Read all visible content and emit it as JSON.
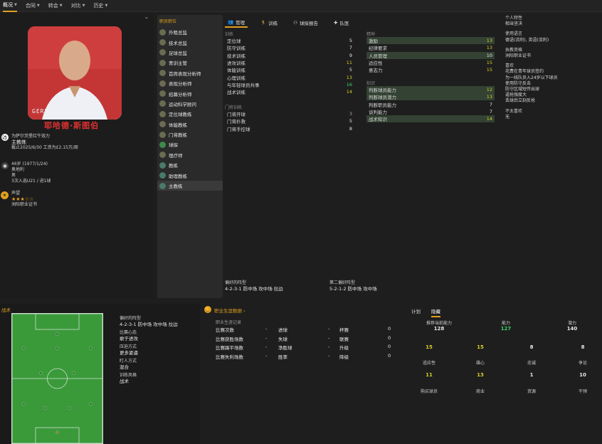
{
  "nav": {
    "tabs": [
      "概况",
      "合同",
      "转会",
      "对比",
      "历史"
    ]
  },
  "player": {
    "photo_name_overlay": "GERHARD STRUBER",
    "name": "耶哈德·斯图伯"
  },
  "club": {
    "line1": "为萨尔茨堡红牛效力",
    "role": "主教练",
    "contract": "截止2025/6/30 工资为£2.15万/周"
  },
  "personal": {
    "age": "46岁 (1977/1/24)",
    "nation": "奥地利",
    "gender": "男",
    "caps": "3次入选U21 / 进1球"
  },
  "reputation": {
    "label": "声望",
    "licence": "洲际职业证书"
  },
  "roles": {
    "header": "职员职位",
    "items": [
      "外租总监",
      "技术总监",
      "足球总监",
      "青训主管",
      "首席表现分析师",
      "表现分析师",
      "招募分析师",
      "运动科学顾问",
      "定位球教练",
      "体能教练",
      "门将教练",
      "球探",
      "理疗师",
      "教练",
      "助理教练",
      "主教练"
    ]
  },
  "subtabs": [
    "管理",
    "训练",
    "球探报告",
    "队医"
  ],
  "training": {
    "section": "训练",
    "rows": [
      {
        "l": "定位球",
        "v": "5"
      },
      {
        "l": "防守训练",
        "v": "7"
      },
      {
        "l": "技术训练",
        "v": "9"
      },
      {
        "l": "进攻训练",
        "v": "11"
      },
      {
        "l": "体能训练",
        "v": "5"
      },
      {
        "l": "心理训练",
        "v": "13"
      },
      {
        "l": "与年轻球员共事",
        "v": "16"
      },
      {
        "l": "战术训练",
        "v": "14"
      }
    ]
  },
  "gk": {
    "section": "门将训练",
    "rows": [
      {
        "l": "门将开球",
        "v": "3"
      },
      {
        "l": "门将扑救",
        "v": "5"
      },
      {
        "l": "门将手控球",
        "v": "8"
      }
    ]
  },
  "mental": {
    "section": "精神",
    "rows": [
      {
        "l": "激励",
        "v": "13"
      },
      {
        "l": "纪律要求",
        "v": "13"
      },
      {
        "l": "人员管理",
        "v": "10"
      },
      {
        "l": "适应性",
        "v": "15"
      },
      {
        "l": "意志力",
        "v": "15"
      }
    ]
  },
  "knowledge": {
    "section": "知识",
    "rows": [
      {
        "l": "判断球员能力",
        "v": "12"
      },
      {
        "l": "判断球员潜力",
        "v": "13"
      },
      {
        "l": "判断职员能力",
        "v": "7"
      },
      {
        "l": "谈判能力",
        "v": "7"
      },
      {
        "l": "战术知识",
        "v": "14"
      }
    ]
  },
  "formations": {
    "pref_label": "偏好的阵型",
    "pref": "4-2-3-1 防中场 攻中场 拉边",
    "second_label": "第二偏好阵型",
    "second": "5-2-1-2 防中场 攻中场"
  },
  "traits": {
    "h1": "个人特性",
    "v1": "相当坚决",
    "h2": "使用语言",
    "v2": "德语(流利), 英语(流利)",
    "h3": "执教资格",
    "v3": "洲际职业证书",
    "h4": "喜欢",
    "likes": [
      "花费在青年球员签约",
      "为一线队员入24岁以下球员",
      "使用防守反击",
      "防守区域短传出球",
      "逼抢强度大",
      "丢球后立刻反抢"
    ],
    "h5": "不太喜欢",
    "v5": "无"
  },
  "tactics": {
    "title": "战术",
    "f_label": "偏好的阵型",
    "f_val": "4-2-3-1 防中场 攻中场 拉边",
    "m_label": "比赛心态",
    "m_val": "敢于进攻",
    "p_label": "压迫方式",
    "p_val": "更多紧逼",
    "a_label": "盯人方式",
    "a_val": "混合",
    "s_label": "训练风格",
    "s_val": "战术"
  },
  "career": {
    "title": "职业生涯数据",
    "sub": "职业生涯记录",
    "rows": [
      [
        "比赛次数",
        "-",
        "进球",
        "-",
        "杯赛",
        "0"
      ],
      [
        "比赛获胜场数",
        "-",
        "失球",
        "-",
        "联赛",
        "0"
      ],
      [
        "比赛踢平场数",
        "-",
        "净胜球",
        "-",
        "升级",
        "0"
      ],
      [
        "比赛失利场数",
        "-",
        "胜率",
        "-",
        "降级",
        "0"
      ]
    ]
  },
  "plan": {
    "tabs": [
      "计划",
      "隐藏"
    ],
    "top": [
      {
        "l": "推荐当前能力",
        "v": "128"
      },
      {
        "l": "能力",
        "v": "127"
      },
      {
        "l": "潜力",
        "v": "140"
      }
    ],
    "grid1": [
      "15",
      "15",
      "8",
      "8"
    ],
    "labels1": [
      "适应性",
      "雄心",
      "忠诚",
      "争论"
    ],
    "grid2": [
      "11",
      "13",
      "1",
      "10"
    ],
    "labels2": [
      "购买球员",
      "商业",
      "资源",
      "干预"
    ]
  }
}
